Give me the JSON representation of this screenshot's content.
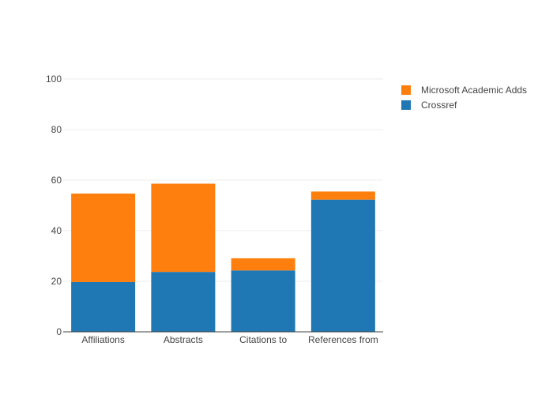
{
  "chart_data": {
    "type": "bar",
    "stacked": true,
    "categories": [
      "Affiliations",
      "Abstracts",
      "Citations to",
      "References from"
    ],
    "series": [
      {
        "name": "Crossref",
        "color": "#1f77b4",
        "values": [
          19.7,
          23.7,
          24.3,
          52.3
        ]
      },
      {
        "name": "Microsoft Academic Adds",
        "color": "#ff7f0e",
        "values": [
          35.0,
          34.9,
          4.8,
          3.2
        ]
      }
    ],
    "title": "",
    "xlabel": "",
    "ylabel": "",
    "ylim": [
      0,
      100
    ],
    "yticks": [
      0,
      20,
      40,
      60,
      80,
      100
    ],
    "grid": true,
    "legend_position": "top-right",
    "legend_order": [
      "Microsoft Academic Adds",
      "Crossref"
    ]
  }
}
